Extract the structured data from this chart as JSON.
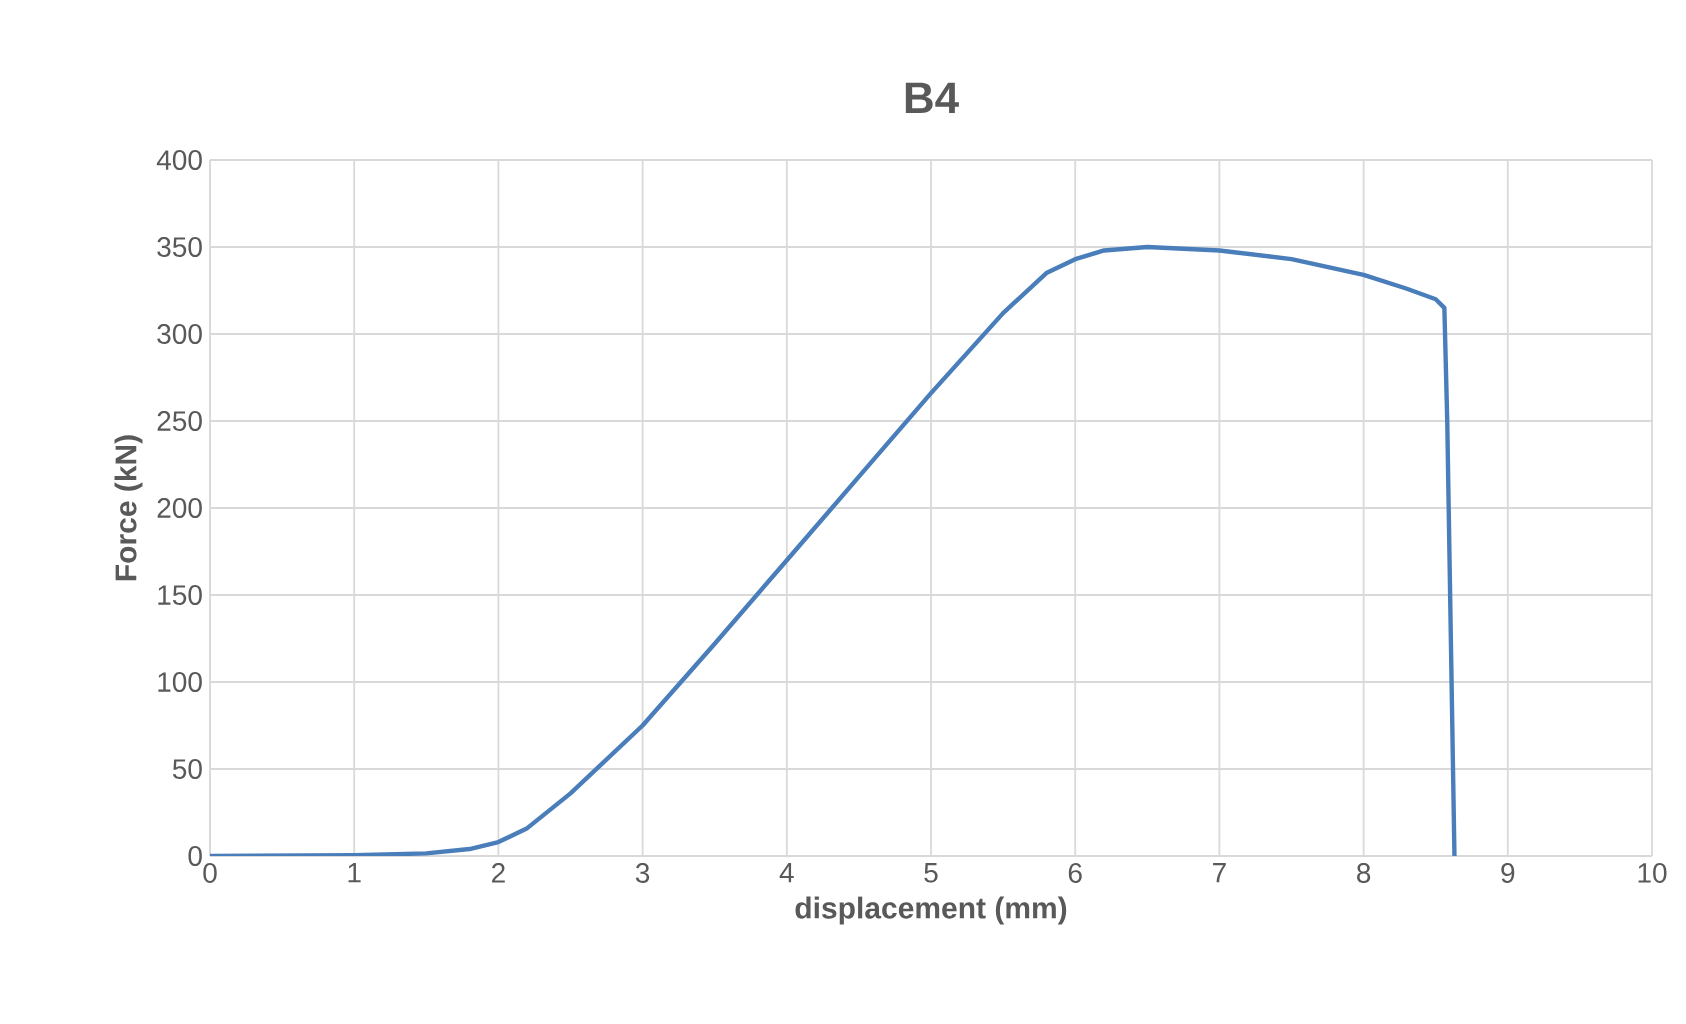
{
  "chart_data": {
    "type": "line",
    "title": "B4",
    "xlabel": "displacement (mm)",
    "ylabel": "Force (kN)",
    "x": [
      0,
      1,
      1.5,
      1.8,
      2.0,
      2.2,
      2.5,
      3.0,
      3.5,
      4.0,
      4.5,
      5.0,
      5.5,
      5.8,
      6.0,
      6.2,
      6.5,
      7.0,
      7.5,
      8.0,
      8.3,
      8.5,
      8.56,
      8.58,
      8.6,
      8.62,
      8.63
    ],
    "series": [
      {
        "color": "#4a7ebb",
        "values": [
          0,
          0.5,
          1.5,
          4,
          8,
          16,
          36,
          75,
          122,
          170,
          218,
          266,
          312,
          335,
          343,
          348,
          350,
          348,
          343,
          334,
          326,
          320,
          315,
          250,
          150,
          50,
          0
        ]
      }
    ],
    "xlim": [
      0,
      10
    ],
    "ylim": [
      0,
      400
    ],
    "xticks": [
      0,
      1,
      2,
      3,
      4,
      5,
      6,
      7,
      8,
      9,
      10
    ],
    "yticks": [
      0,
      50,
      100,
      150,
      200,
      250,
      300,
      350,
      400
    ],
    "grid": true,
    "legend": false,
    "marker": "none",
    "line_style": "solid"
  }
}
